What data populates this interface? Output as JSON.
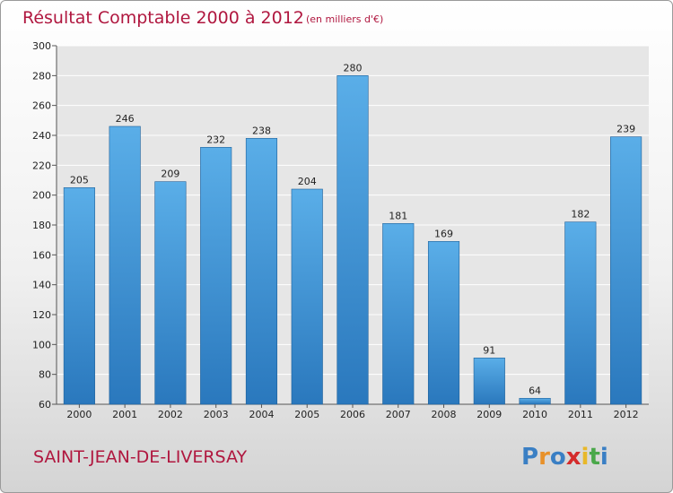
{
  "chart_data": {
    "type": "bar",
    "title": "Résultat Comptable 2000 à 2012",
    "subtitle": "(en milliers d'€)",
    "categories": [
      "2000",
      "2001",
      "2002",
      "2003",
      "2004",
      "2005",
      "2006",
      "2007",
      "2008",
      "2009",
      "2010",
      "2011",
      "2012"
    ],
    "values": [
      205,
      246,
      209,
      232,
      238,
      204,
      280,
      181,
      169,
      91,
      64,
      182,
      239
    ],
    "ylim": [
      60,
      300
    ],
    "yticks": [
      60,
      80,
      100,
      120,
      140,
      160,
      180,
      200,
      220,
      240,
      260,
      280,
      300
    ],
    "grid": true,
    "colors": {
      "bar_light": "#5aaee8",
      "bar_dark": "#2a78bd",
      "title": "#b0173f"
    }
  },
  "footer": {
    "city": "SAINT-JEAN-DE-LIVERSAY",
    "logo_letters": [
      "P",
      "r",
      "o",
      "x",
      "i",
      "t",
      "i"
    ],
    "logo_colors": [
      "#3a7fc4",
      "#e8912a",
      "#3a7fc4",
      "#d42b2b",
      "#e8b82a",
      "#4aa84a",
      "#3a7fc4"
    ]
  }
}
